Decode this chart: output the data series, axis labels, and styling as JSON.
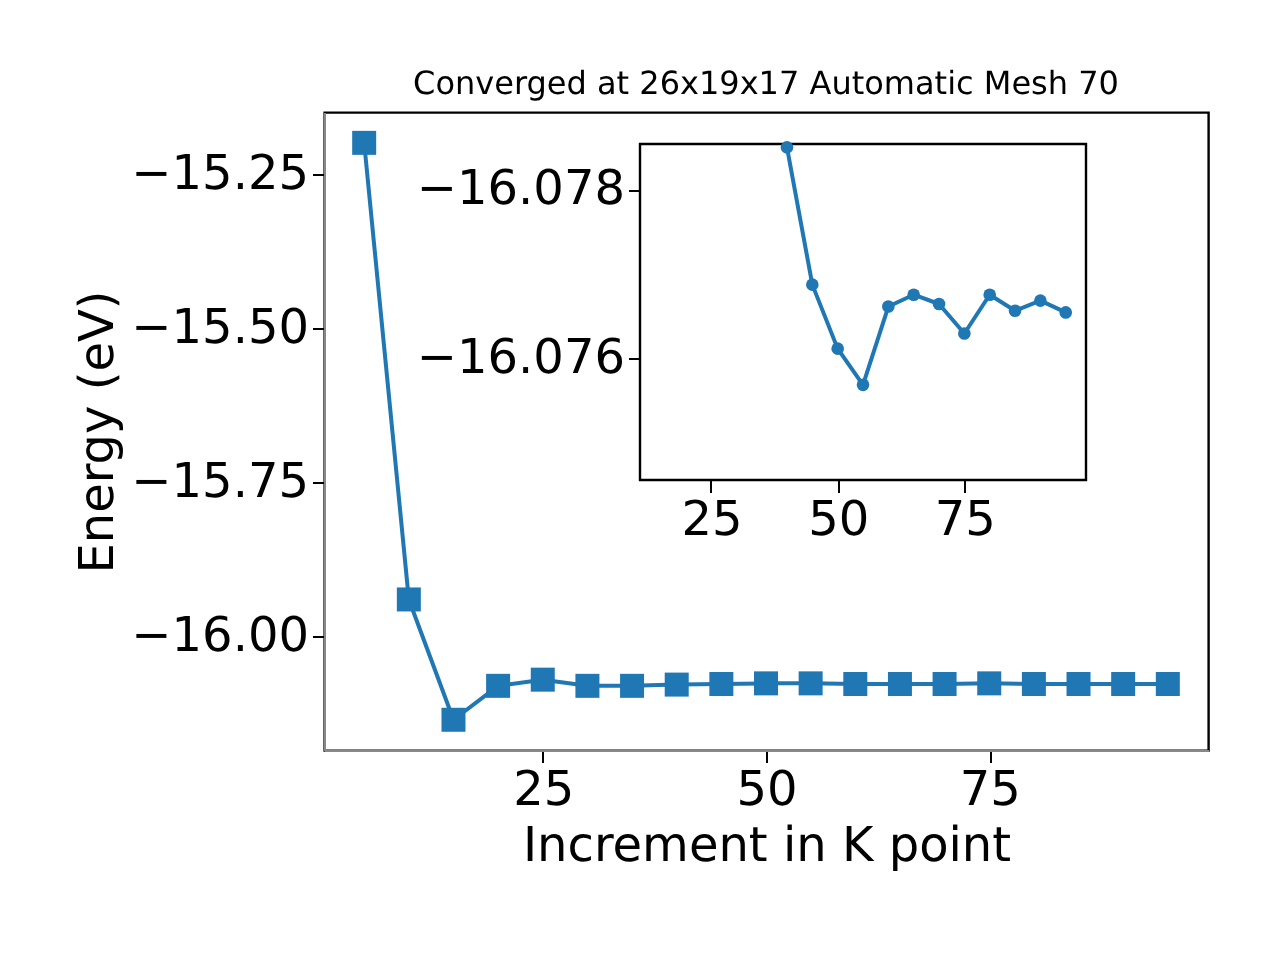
{
  "chart_data": [
    {
      "type": "line",
      "title": "Converged at 26x19x17 Automatic Mesh 70",
      "xlabel": "Increment in K point",
      "ylabel": "Energy (eV)",
      "x": [
        5,
        10,
        15,
        20,
        25,
        30,
        35,
        40,
        45,
        50,
        55,
        60,
        65,
        70,
        75,
        80,
        85,
        90,
        95
      ],
      "series": [
        {
          "color": "#1f77b4",
          "values": [
            -15.2,
            -15.94,
            -16.135,
            -16.08,
            -16.07,
            -16.08,
            -16.08,
            -16.078,
            -16.077,
            -16.076,
            -16.076,
            -16.077,
            -16.077,
            -16.077,
            -16.076,
            -16.077,
            -16.077,
            -16.077,
            -16.077
          ]
        }
      ],
      "xlim": [
        0.5,
        99.5
      ],
      "ylim": [
        -16.184,
        -15.15
      ],
      "xticks": [
        25,
        50,
        75
      ],
      "yticks": [
        {
          "value": -15.25,
          "label": "−15.25"
        },
        {
          "value": -15.5,
          "label": "−15.50"
        },
        {
          "value": -15.75,
          "label": "−15.75"
        },
        {
          "value": -16.0,
          "label": "−16.00"
        }
      ],
      "marker": "square",
      "grid": false
    },
    {
      "type": "line",
      "x": [
        40,
        45,
        50,
        55,
        60,
        65,
        70,
        75,
        80,
        85,
        90,
        95
      ],
      "series": [
        {
          "color": "#1f77b4",
          "values": [
            -16.0785,
            -16.07687,
            -16.07611,
            -16.07568,
            -16.07661,
            -16.07675,
            -16.07664,
            -16.07629,
            -16.07675,
            -16.07656,
            -16.07668,
            -16.07654
          ]
        }
      ],
      "xlim": [
        11,
        99
      ],
      "ylim": [
        -16.07455,
        -16.07854
      ],
      "xticks": [
        25,
        50,
        75
      ],
      "yticks": [
        {
          "value": -16.078,
          "label": "−16.078"
        },
        {
          "value": -16.076,
          "label": "−16.076"
        }
      ],
      "marker": "circle",
      "grid": false
    }
  ]
}
